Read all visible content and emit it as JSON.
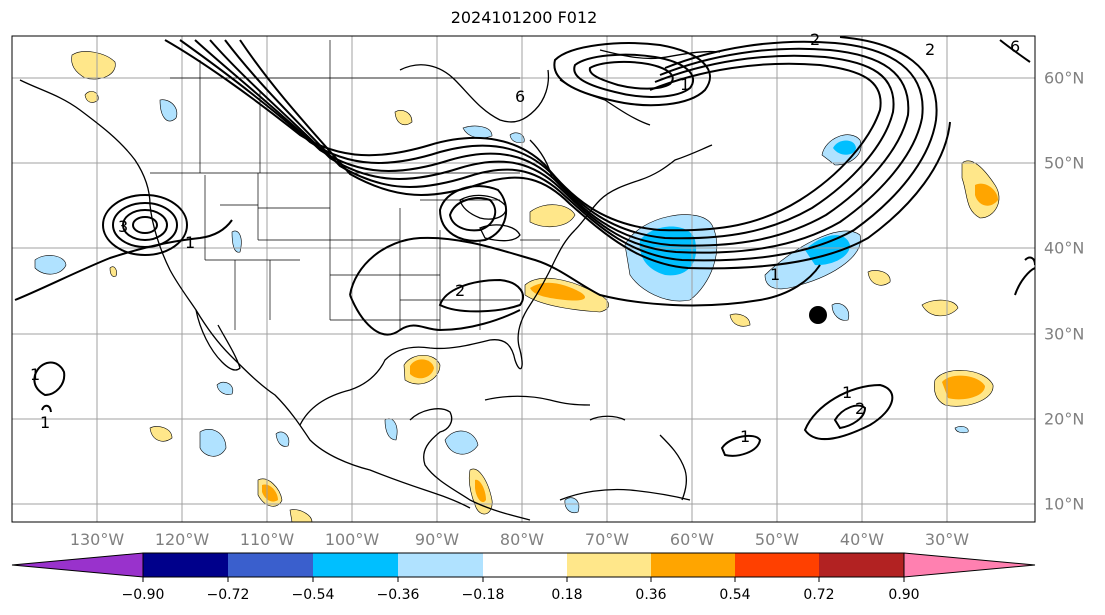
{
  "title": "2024101200 F012",
  "lon_labels": [
    "130°W",
    "120°W",
    "110°W",
    "100°W",
    "90°W",
    "80°W",
    "70°W",
    "60°W",
    "50°W",
    "40°W",
    "30°W"
  ],
  "lat_labels": [
    "60°N",
    "50°N",
    "40°N",
    "30°N",
    "20°N",
    "10°N"
  ],
  "contour_labels": [
    "1",
    "2",
    "3",
    "6",
    "1",
    "1",
    "1",
    "2",
    "1",
    "1",
    "1",
    "2",
    "2",
    "6"
  ],
  "colorbar": {
    "tick_labels": [
      "−0.90",
      "−0.72",
      "−0.54",
      "−0.36",
      "−0.18",
      "0.18",
      "0.36",
      "0.54",
      "0.72",
      "0.90"
    ],
    "colors": [
      "#9932cc",
      "#00008b",
      "#3a5fcd",
      "#00bfff",
      "#b0e2ff",
      "#ffffff",
      "#ffe78a",
      "#ffa500",
      "#ff4000",
      "#b22222",
      "#ff80b0"
    ],
    "extend": "both"
  },
  "marker": {
    "type": "storm-center-dot",
    "color": "#000000"
  }
}
